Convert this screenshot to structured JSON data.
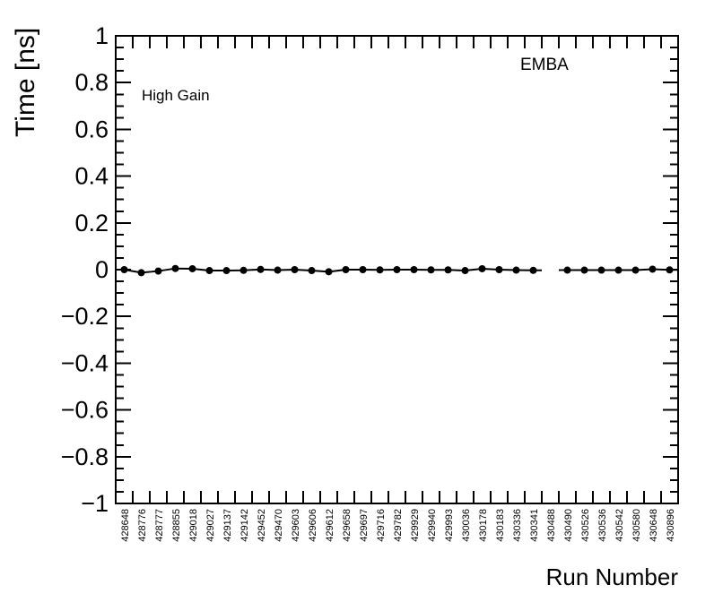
{
  "page": {
    "background_color": "#ffffff",
    "foreground_color": "#000000"
  },
  "chart_data": {
    "type": "line",
    "title": "",
    "xlabel": "Run Number",
    "ylabel": "Time [ns]",
    "annotations": [
      {
        "name": "gain-label",
        "text": "High Gain"
      },
      {
        "name": "detector-label",
        "text": "EMBA"
      }
    ],
    "legend": "none",
    "grid": false,
    "ylim": [
      -1,
      1
    ],
    "y_major_step": 0.2,
    "y_minor_step": 0.05,
    "y_tick_labels": [
      "1",
      "0.8",
      "0.6",
      "0.4",
      "0.2",
      "0",
      "−0.2",
      "−0.4",
      "−0.6",
      "−0.8",
      "−1"
    ],
    "y_tick_values": [
      1,
      0.8,
      0.6,
      0.4,
      0.2,
      0,
      -0.2,
      -0.4,
      -0.6,
      -0.8,
      -1
    ],
    "x_axis_style": "bin-labels-vertical",
    "categories": [
      "428648",
      "428776",
      "428777",
      "428855",
      "429018",
      "429027",
      "429137",
      "429142",
      "429452",
      "429470",
      "429603",
      "429606",
      "429612",
      "429658",
      "429697",
      "429716",
      "429782",
      "429929",
      "429940",
      "429993",
      "430036",
      "430178",
      "430183",
      "430336",
      "430341",
      "430488",
      "430490",
      "430526",
      "430536",
      "430542",
      "430580",
      "430648",
      "430896"
    ],
    "series": [
      {
        "name": "average-time-vs-run",
        "marker": "filled-circle",
        "color": "#000000",
        "values": [
          0.0,
          -0.013,
          -0.006,
          0.005,
          0.004,
          -0.004,
          -0.004,
          -0.003,
          0.001,
          -0.002,
          0.0,
          -0.004,
          -0.009,
          0.0,
          0.0,
          -0.001,
          0.0,
          0.0,
          -0.001,
          -0.001,
          -0.004,
          0.004,
          0.0,
          -0.002,
          -0.003,
          null,
          -0.002,
          -0.002,
          -0.002,
          -0.002,
          -0.002,
          0.002,
          -0.001
        ]
      }
    ]
  }
}
